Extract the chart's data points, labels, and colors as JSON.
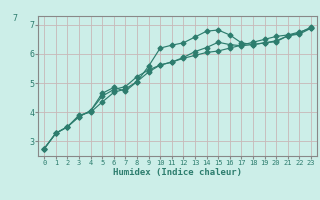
{
  "xlabel": "Humidex (Indice chaleur)",
  "bg_color": "#cceee8",
  "line_color": "#2d7d6e",
  "grid_color_v": "#c8b8b8",
  "grid_color_h": "#c8b8b8",
  "xlim": [
    -0.5,
    23.5
  ],
  "ylim": [
    2.5,
    7.3
  ],
  "xticks": [
    0,
    1,
    2,
    3,
    4,
    5,
    6,
    7,
    8,
    9,
    10,
    11,
    12,
    13,
    14,
    15,
    16,
    17,
    18,
    19,
    20,
    21,
    22,
    23
  ],
  "yticks": [
    3,
    4,
    5,
    6,
    7
  ],
  "ytick_labels": [
    "3",
    "4",
    "5",
    "6",
    "7"
  ],
  "line1_x": [
    0,
    1,
    2,
    3,
    4,
    5,
    6,
    7,
    8,
    9,
    10,
    11,
    12,
    13,
    14,
    15,
    16,
    17,
    18,
    19,
    20,
    21,
    22,
    23
  ],
  "line1_y": [
    2.75,
    3.28,
    3.5,
    3.85,
    4.05,
    4.55,
    4.78,
    4.88,
    5.22,
    5.45,
    5.62,
    5.72,
    5.85,
    5.95,
    6.05,
    6.1,
    6.2,
    6.3,
    6.4,
    6.5,
    6.6,
    6.65,
    6.75,
    6.88
  ],
  "line2_x": [
    0,
    1,
    2,
    3,
    4,
    5,
    6,
    7,
    8,
    9,
    10,
    11,
    12,
    13,
    14,
    15,
    16,
    17,
    18,
    19,
    20,
    21,
    22,
    23
  ],
  "line2_y": [
    2.75,
    3.28,
    3.5,
    3.85,
    4.05,
    4.65,
    4.85,
    4.72,
    5.05,
    5.58,
    6.2,
    6.3,
    6.38,
    6.58,
    6.78,
    6.82,
    6.65,
    6.38,
    6.32,
    6.38,
    6.45,
    6.62,
    6.68,
    6.88
  ],
  "line3_x": [
    0,
    1,
    2,
    3,
    4,
    5,
    6,
    7,
    8,
    9,
    10,
    11,
    12,
    13,
    14,
    15,
    16,
    17,
    18,
    19,
    20,
    21,
    22,
    23
  ],
  "line3_y": [
    2.75,
    3.28,
    3.5,
    3.9,
    4.0,
    4.35,
    4.68,
    4.8,
    5.05,
    5.38,
    5.62,
    5.72,
    5.88,
    6.08,
    6.22,
    6.4,
    6.32,
    6.28,
    6.32,
    6.38,
    6.42,
    6.62,
    6.72,
    6.92
  ],
  "marker": "D",
  "markersize": 2.5,
  "linewidth": 0.85
}
